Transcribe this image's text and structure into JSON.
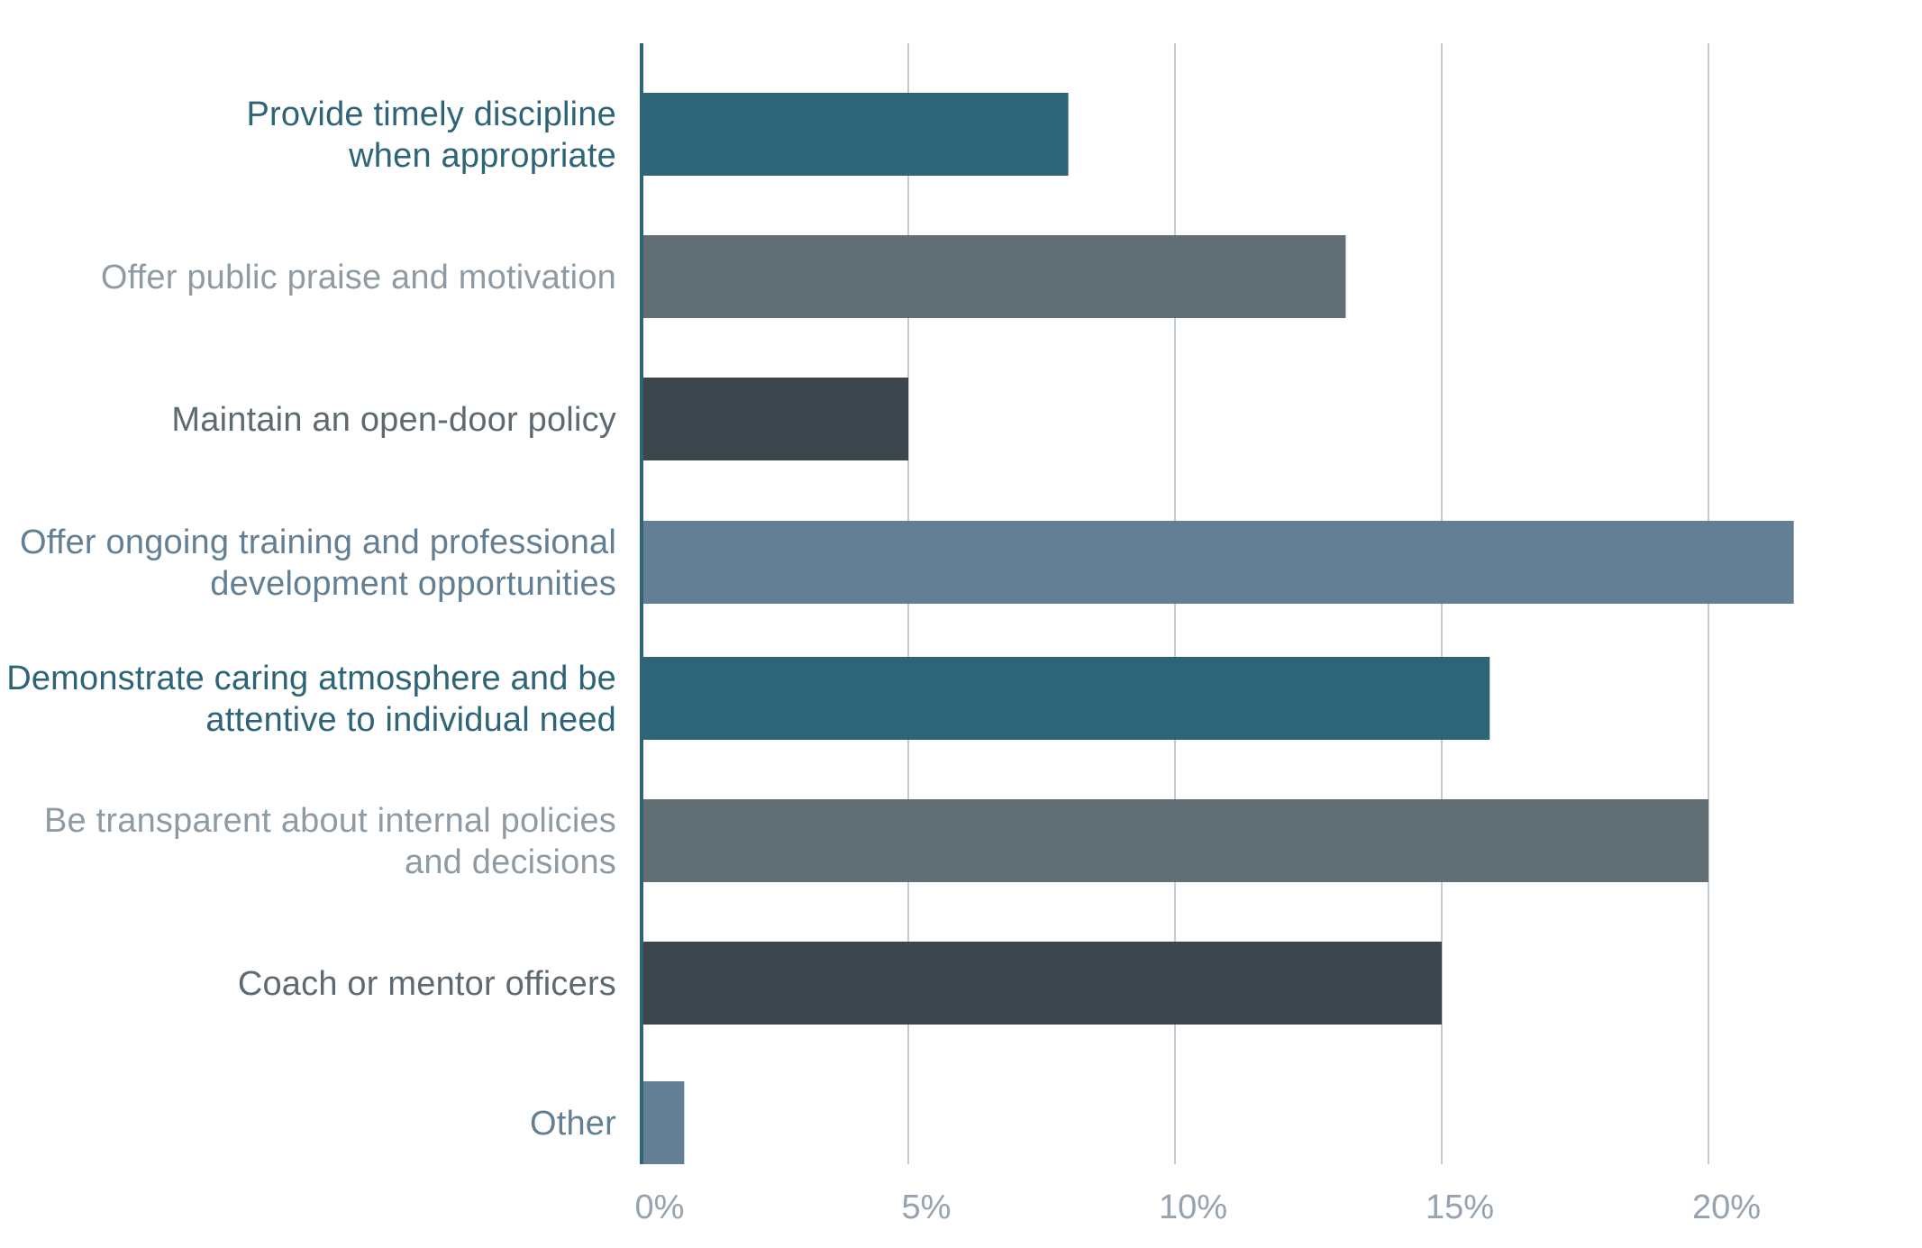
{
  "chart_data": {
    "type": "bar",
    "orientation": "horizontal",
    "title": "",
    "xlabel": "",
    "ylabel": "",
    "categories": [
      "Provide timely discipline\nwhen appropriate",
      "Offer public praise and motivation",
      "Maintain an open-door policy",
      "Offer ongoing training and professional\ndevelopment opportunities",
      "Demonstrate caring atmosphere and be\nattentive to individual need",
      "Be transparent about internal policies\nand decisions",
      "Coach or mentor officers",
      "Other"
    ],
    "values": [
      8.0,
      13.2,
      5.0,
      21.6,
      15.9,
      20.0,
      15.0,
      0.8
    ],
    "bar_colors": [
      "#2d6477",
      "#626f74",
      "#3b474c",
      "#627f93",
      "#2d6477",
      "#626f74",
      "#3b474c",
      "#627f93"
    ],
    "label_colors": [
      "#2d6477",
      "#8f9ba2",
      "#5f6a70",
      "#627f93",
      "#2d6477",
      "#8f9ba2",
      "#5f6a70",
      "#627f93"
    ],
    "xlim": [
      0,
      22.5
    ],
    "xticks": [
      0,
      5,
      10,
      15,
      20
    ],
    "xtick_labels": [
      "0%",
      "5%",
      "10%",
      "15%",
      "20%"
    ],
    "grid": true,
    "colors": {
      "grid": "#c3ccd5",
      "axis": "#2d6477",
      "tick_text": "#94a2b1"
    }
  }
}
